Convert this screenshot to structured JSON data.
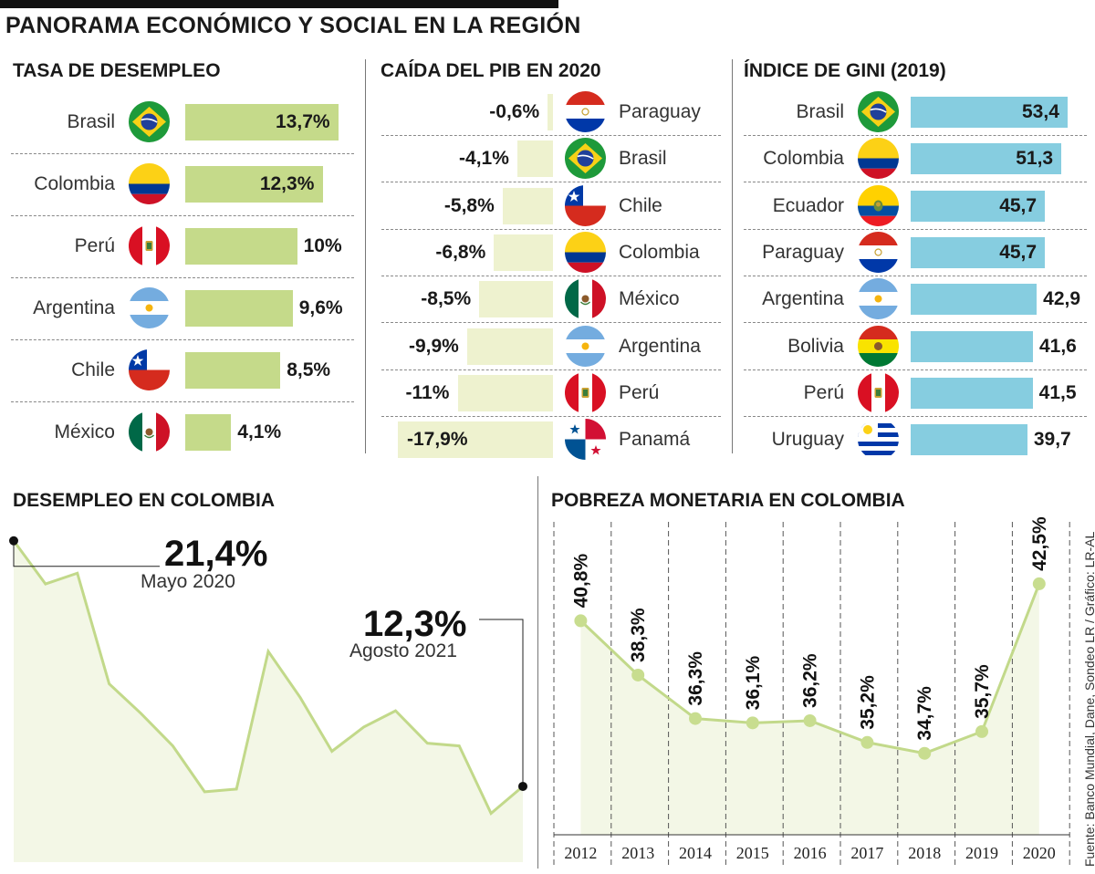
{
  "title": "PANORAMA ECONÓMICO Y SOCIAL EN LA REGIÓN",
  "source": "Fuente: Banco Mundial, Dane, Sondeo LR / Gráfico: LR-AL",
  "colors": {
    "green_bar": "#c5da8a",
    "pale_bar": "#eef2cf",
    "blue_bar": "#86cde0",
    "line": "#c2d98a",
    "area": "#f3f7e6"
  },
  "unemployment": {
    "title": "TASA DE DESEMPLEO",
    "rows": [
      {
        "country": "Brasil",
        "flag": "brazil",
        "value": 13.7,
        "label": "13,7%"
      },
      {
        "country": "Colombia",
        "flag": "colombia",
        "value": 12.3,
        "label": "12,3%"
      },
      {
        "country": "Perú",
        "flag": "peru",
        "value": 10,
        "label": "10%"
      },
      {
        "country": "Argentina",
        "flag": "argentina",
        "value": 9.6,
        "label": "9,6%"
      },
      {
        "country": "Chile",
        "flag": "chile",
        "value": 8.5,
        "label": "8,5%"
      },
      {
        "country": "México",
        "flag": "mexico",
        "value": 4.1,
        "label": "4,1%"
      }
    ]
  },
  "gdp": {
    "title": "CAÍDA DEL PIB EN 2020",
    "rows": [
      {
        "country": "Paraguay",
        "flag": "paraguay",
        "value": -0.6,
        "label": "-0,6%"
      },
      {
        "country": "Brasil",
        "flag": "brazil",
        "value": -4.1,
        "label": "-4,1%"
      },
      {
        "country": "Chile",
        "flag": "chile",
        "value": -5.8,
        "label": "-5,8%"
      },
      {
        "country": "Colombia",
        "flag": "colombia",
        "value": -6.8,
        "label": "-6,8%"
      },
      {
        "country": "México",
        "flag": "mexico",
        "value": -8.5,
        "label": "-8,5%"
      },
      {
        "country": "Argentina",
        "flag": "argentina",
        "value": -9.9,
        "label": "-9,9%"
      },
      {
        "country": "Perú",
        "flag": "peru",
        "value": -11,
        "label": "-11%"
      },
      {
        "country": "Panamá",
        "flag": "panama",
        "value": -17.9,
        "label": "-17,9%"
      }
    ]
  },
  "gini": {
    "title": "ÍNDICE DE GINI (2019)",
    "rows": [
      {
        "country": "Brasil",
        "flag": "brazil",
        "value": 53.4,
        "label": "53,4"
      },
      {
        "country": "Colombia",
        "flag": "colombia",
        "value": 51.3,
        "label": "51,3"
      },
      {
        "country": "Ecuador",
        "flag": "ecuador",
        "value": 45.7,
        "label": "45,7"
      },
      {
        "country": "Paraguay",
        "flag": "paraguay",
        "value": 45.7,
        "label": "45,7"
      },
      {
        "country": "Argentina",
        "flag": "argentina",
        "value": 42.9,
        "label": "42,9"
      },
      {
        "country": "Bolivia",
        "flag": "bolivia",
        "value": 41.6,
        "label": "41,6"
      },
      {
        "country": "Perú",
        "flag": "peru",
        "value": 41.5,
        "label": "41,5"
      },
      {
        "country": "Uruguay",
        "flag": "uruguay",
        "value": 39.7,
        "label": "39,7"
      }
    ]
  },
  "colombia_unemployment": {
    "title": "DESEMPLEO EN COLOMBIA",
    "values": [
      21.4,
      19.8,
      20.2,
      16.1,
      15.0,
      13.8,
      12.1,
      12.2,
      17.3,
      15.6,
      13.6,
      14.5,
      15.1,
      13.9,
      13.8,
      11.3,
      12.3
    ],
    "ylim": [
      10,
      22
    ],
    "peak": {
      "value": "21,4%",
      "date": "Mayo 2020"
    },
    "last": {
      "value": "12,3%",
      "date": "Agosto 2021"
    }
  },
  "chart_data": [
    {
      "type": "bar",
      "title": "TASA DE DESEMPLEO",
      "categories": [
        "Brasil",
        "Colombia",
        "Perú",
        "Argentina",
        "Chile",
        "México"
      ],
      "values": [
        13.7,
        12.3,
        10,
        9.6,
        8.5,
        4.1
      ],
      "unit": "%"
    },
    {
      "type": "bar",
      "title": "CAÍDA DEL PIB EN 2020",
      "categories": [
        "Paraguay",
        "Brasil",
        "Chile",
        "Colombia",
        "México",
        "Argentina",
        "Perú",
        "Panamá"
      ],
      "values": [
        -0.6,
        -4.1,
        -5.8,
        -6.8,
        -8.5,
        -9.9,
        -11,
        -17.9
      ],
      "unit": "%"
    },
    {
      "type": "bar",
      "title": "ÍNDICE DE GINI (2019)",
      "categories": [
        "Brasil",
        "Colombia",
        "Ecuador",
        "Paraguay",
        "Argentina",
        "Bolivia",
        "Perú",
        "Uruguay"
      ],
      "values": [
        53.4,
        51.3,
        45.7,
        45.7,
        42.9,
        41.6,
        41.5,
        39.7
      ]
    },
    {
      "type": "area",
      "title": "DESEMPLEO EN COLOMBIA",
      "x": [
        "Mayo 2020",
        "",
        "",
        "",
        "",
        "",
        "",
        "",
        "",
        "",
        "",
        "",
        "",
        "",
        "",
        "",
        "Agosto 2021"
      ],
      "values": [
        21.4,
        19.8,
        20.2,
        16.1,
        15.0,
        13.8,
        12.1,
        12.2,
        17.3,
        15.6,
        13.6,
        14.5,
        15.1,
        13.9,
        13.8,
        11.3,
        12.3
      ],
      "unit": "%"
    },
    {
      "type": "line",
      "title": "POBREZA MONETARIA EN COLOMBIA",
      "categories": [
        "2012",
        "2013",
        "2014",
        "2015",
        "2016",
        "2017",
        "2018",
        "2019",
        "2020"
      ],
      "values": [
        40.8,
        38.3,
        36.3,
        36.1,
        36.2,
        35.2,
        34.7,
        35.7,
        42.5
      ],
      "labels": [
        "40,8%",
        "38,3%",
        "36,3%",
        "36,1%",
        "36,2%",
        "35,2%",
        "34,7%",
        "35,7%",
        "42,5%"
      ],
      "unit": "%",
      "grid": true
    }
  ],
  "poverty": {
    "title": "POBREZA MONETARIA EN COLOMBIA",
    "years": [
      "2012",
      "2013",
      "2014",
      "2015",
      "2016",
      "2017",
      "2018",
      "2019",
      "2020"
    ],
    "values": [
      40.8,
      38.3,
      36.3,
      36.1,
      36.2,
      35.2,
      34.7,
      35.7,
      42.5
    ],
    "labels": [
      "40,8%",
      "38,3%",
      "36,3%",
      "36,1%",
      "36,2%",
      "35,2%",
      "34,7%",
      "35,7%",
      "42,5%"
    ],
    "ylim": [
      32,
      43
    ]
  }
}
